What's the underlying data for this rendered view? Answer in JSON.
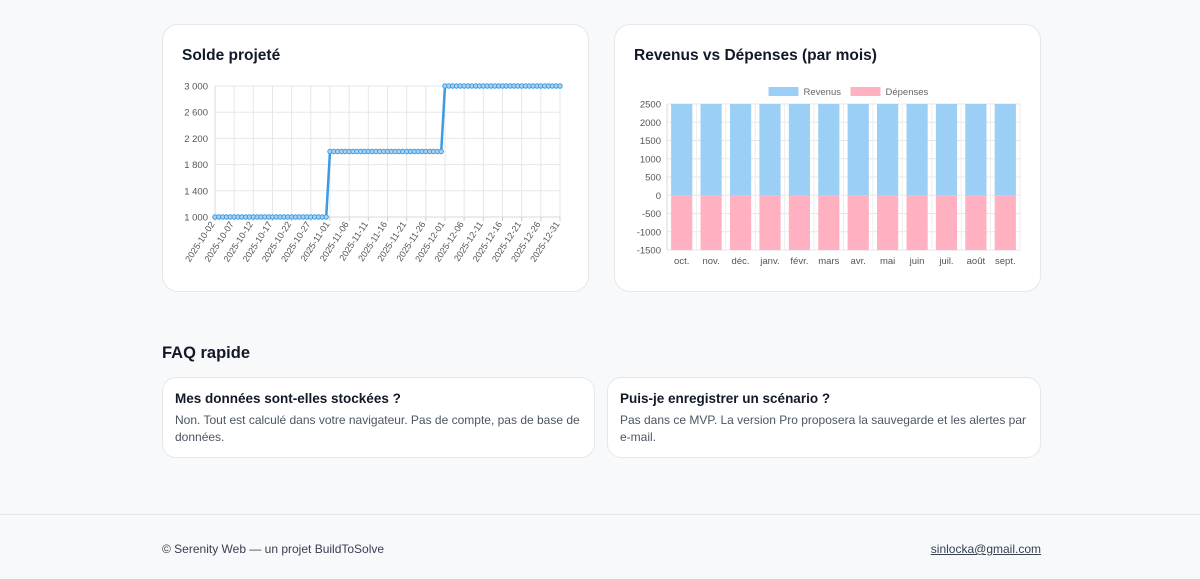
{
  "balance_card": {
    "title": "Solde projeté"
  },
  "revenue_card": {
    "title": "Revenus vs Dépenses (par mois)"
  },
  "chart_data": [
    {
      "type": "line",
      "title": "Solde projeté",
      "x": [
        "2025-10-02",
        "2025-10-07",
        "2025-10-12",
        "2025-10-17",
        "2025-10-22",
        "2025-10-27",
        "2025-11-01",
        "2025-11-06",
        "2025-11-11",
        "2025-11-16",
        "2025-11-21",
        "2025-11-26",
        "2025-12-01",
        "2025-12-06",
        "2025-12-11",
        "2025-12-16",
        "2025-12-21",
        "2025-12-26",
        "2025-12-31"
      ],
      "step_values": {
        "start_date": "2025-10-02",
        "end_date": "2025-12-31",
        "segments": [
          {
            "from": "2025-10-02",
            "to": "2025-10-31",
            "value": 1000
          },
          {
            "from": "2025-11-01",
            "to": "2025-11-30",
            "value": 2000
          },
          {
            "from": "2025-12-01",
            "to": "2025-12-31",
            "value": 3000
          }
        ]
      },
      "y_ticks": [
        "1 000",
        "1 400",
        "1 800",
        "2 200",
        "2 600",
        "3 000"
      ],
      "ylim": [
        1000,
        3000
      ],
      "color": "#3b9ae1"
    },
    {
      "type": "bar",
      "title": "Revenus vs Dépenses (par mois)",
      "categories": [
        "oct.",
        "nov.",
        "déc.",
        "janv.",
        "févr.",
        "mars",
        "avr.",
        "mai",
        "juin",
        "juil.",
        "août",
        "sept."
      ],
      "series": [
        {
          "name": "Revenus",
          "values": [
            2500,
            2500,
            2500,
            2500,
            2500,
            2500,
            2500,
            2500,
            2500,
            2500,
            2500,
            2500
          ],
          "color": "#9ccff5"
        },
        {
          "name": "Dépenses",
          "values": [
            -1500,
            -1500,
            -1500,
            -1500,
            -1500,
            -1500,
            -1500,
            -1500,
            -1500,
            -1500,
            -1500,
            -1500
          ],
          "color": "#ffb1c1"
        }
      ],
      "y_ticks": [
        "2500",
        "2000",
        "1500",
        "1000",
        "500",
        "0",
        "-500",
        "-1000",
        "-1500"
      ],
      "ylim": [
        -1500,
        2500
      ],
      "legend": "top"
    }
  ],
  "faq": {
    "title": "FAQ rapide",
    "items": [
      {
        "question": "Mes données sont-elles stockées ?",
        "answer": "Non. Tout est calculé dans votre navigateur. Pas de compte, pas de base de données."
      },
      {
        "question": "Puis-je enregistrer un scénario ?",
        "answer": "Pas dans ce MVP. La version Pro proposera la sauvegarde et les alertes par e-mail."
      }
    ]
  },
  "footer": {
    "copyright": "© Serenity Web — un projet BuildToSolve",
    "email": "sinlocka@gmail.com"
  }
}
